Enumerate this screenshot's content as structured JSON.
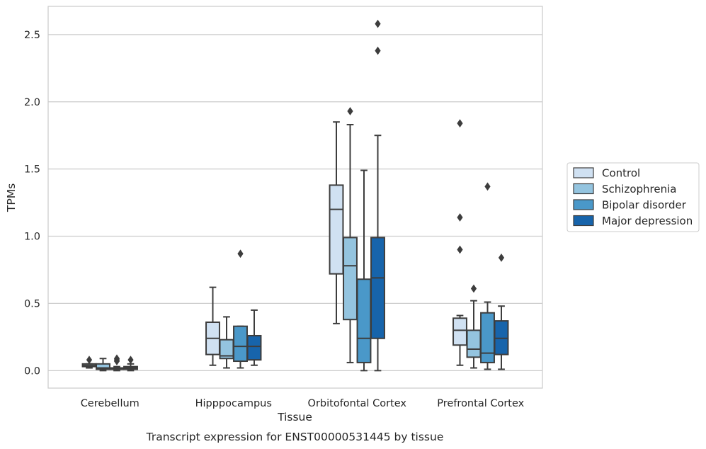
{
  "chart_data": {
    "type": "boxplot",
    "xlabel": "Tissue",
    "ylabel": "TPMs",
    "caption": "Transcript expression for ENST00000531445 by tissue",
    "ylim": [
      -0.13,
      2.71
    ],
    "yticks": [
      "0.0",
      "0.5",
      "1.0",
      "1.5",
      "2.0",
      "2.5"
    ],
    "grid": "horizontal",
    "legend_position": "right",
    "categories": [
      "Cerebellum",
      "Hipppocampus",
      "Orbitofontal Cortex",
      "Prefrontal Cortex"
    ],
    "series": [
      {
        "name": "Control",
        "color": "#d0e1f2",
        "boxes": [
          {
            "whislo": 0.02,
            "q1": 0.03,
            "med": 0.04,
            "q3": 0.05,
            "whishi": 0.05,
            "fliers": [
              0.08
            ]
          },
          {
            "whislo": 0.04,
            "q1": 0.12,
            "med": 0.24,
            "q3": 0.36,
            "whishi": 0.62,
            "fliers": []
          },
          {
            "whislo": 0.35,
            "q1": 0.72,
            "med": 1.2,
            "q3": 1.38,
            "whishi": 1.85,
            "fliers": []
          },
          {
            "whislo": 0.04,
            "q1": 0.19,
            "med": 0.3,
            "q3": 0.39,
            "whishi": 0.41,
            "fliers": [
              0.9,
              1.14,
              1.84
            ]
          }
        ]
      },
      {
        "name": "Schizophrenia",
        "color": "#94c4df",
        "boxes": [
          {
            "whislo": 0.0,
            "q1": 0.01,
            "med": 0.02,
            "q3": 0.05,
            "whishi": 0.09,
            "fliers": []
          },
          {
            "whislo": 0.02,
            "q1": 0.09,
            "med": 0.11,
            "q3": 0.23,
            "whishi": 0.4,
            "fliers": []
          },
          {
            "whislo": 0.06,
            "q1": 0.38,
            "med": 0.78,
            "q3": 0.99,
            "whishi": 1.83,
            "fliers": [
              1.93
            ]
          },
          {
            "whislo": 0.02,
            "q1": 0.1,
            "med": 0.16,
            "q3": 0.3,
            "whishi": 0.52,
            "fliers": [
              0.61
            ]
          }
        ]
      },
      {
        "name": "Bipolar disorder",
        "color": "#4a98c9",
        "boxes": [
          {
            "whislo": 0.0,
            "q1": 0.01,
            "med": 0.02,
            "q3": 0.02,
            "whishi": 0.03,
            "fliers": [
              0.07,
              0.08,
              0.09
            ]
          },
          {
            "whislo": 0.02,
            "q1": 0.07,
            "med": 0.18,
            "q3": 0.33,
            "whishi": 0.33,
            "fliers": [
              0.87
            ]
          },
          {
            "whislo": 0.0,
            "q1": 0.06,
            "med": 0.24,
            "q3": 0.68,
            "whishi": 1.49,
            "fliers": []
          },
          {
            "whislo": 0.01,
            "q1": 0.06,
            "med": 0.13,
            "q3": 0.43,
            "whishi": 0.51,
            "fliers": [
              1.37
            ]
          }
        ]
      },
      {
        "name": "Major depression",
        "color": "#1764ab",
        "boxes": [
          {
            "whislo": 0.0,
            "q1": 0.01,
            "med": 0.02,
            "q3": 0.03,
            "whishi": 0.05,
            "fliers": [
              0.08
            ]
          },
          {
            "whislo": 0.04,
            "q1": 0.08,
            "med": 0.18,
            "q3": 0.26,
            "whishi": 0.45,
            "fliers": []
          },
          {
            "whislo": 0.0,
            "q1": 0.24,
            "med": 0.69,
            "q3": 0.99,
            "whishi": 1.75,
            "fliers": [
              2.38,
              2.58
            ]
          },
          {
            "whislo": 0.01,
            "q1": 0.12,
            "med": 0.24,
            "q3": 0.37,
            "whishi": 0.48,
            "fliers": [
              0.84
            ]
          }
        ]
      }
    ]
  }
}
